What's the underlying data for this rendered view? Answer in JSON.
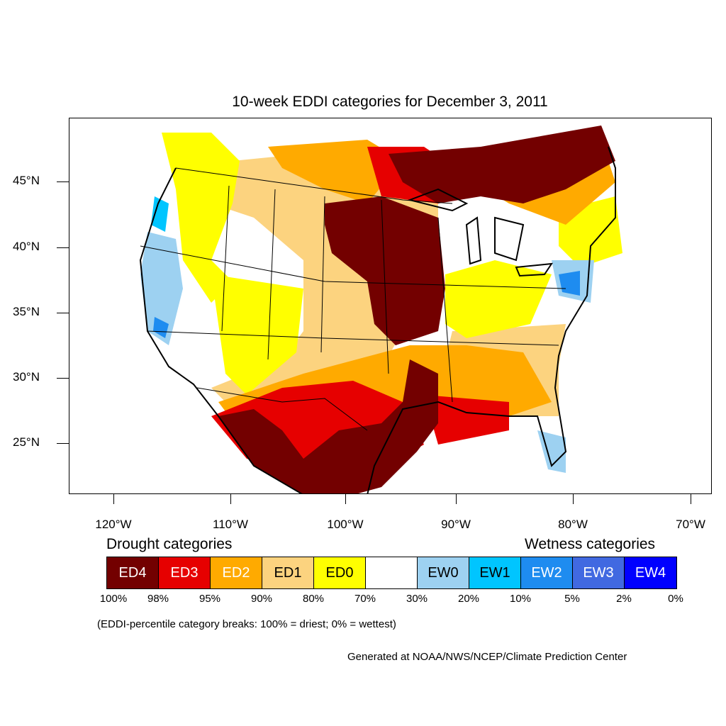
{
  "title": "10-week EDDI categories for December 3, 2011",
  "lat_labels": [
    "45°N",
    "40°N",
    "35°N",
    "30°N",
    "25°N"
  ],
  "lon_labels": [
    "120°W",
    "110°W",
    "100°W",
    "90°W",
    "80°W",
    "70°W"
  ],
  "legend": {
    "drought_heading": "Drought categories",
    "wetness_heading": "Wetness categories",
    "boxes": [
      {
        "label": "ED4",
        "color": "#730000",
        "text_color": "#ffffff"
      },
      {
        "label": "ED3",
        "color": "#e60000",
        "text_color": "#ffffff"
      },
      {
        "label": "ED2",
        "color": "#ffaa00",
        "text_color": "#ffffff"
      },
      {
        "label": "ED1",
        "color": "#fcd37f",
        "text_color": "#000000"
      },
      {
        "label": "ED0",
        "color": "#ffff00",
        "text_color": "#000000"
      },
      {
        "label": "",
        "color": "#ffffff",
        "text_color": "#000000"
      },
      {
        "label": "EW0",
        "color": "#9dd1f1",
        "text_color": "#000000"
      },
      {
        "label": "EW1",
        "color": "#00c5ff",
        "text_color": "#000000"
      },
      {
        "label": "EW2",
        "color": "#1e8cf0",
        "text_color": "#ffffff"
      },
      {
        "label": "EW3",
        "color": "#4169e1",
        "text_color": "#ffffff"
      },
      {
        "label": "EW4",
        "color": "#0000ff",
        "text_color": "#ffffff"
      }
    ],
    "breaks": [
      "100%",
      "98%",
      "95%",
      "90%",
      "80%",
      "70%",
      "30%",
      "20%",
      "10%",
      "5%",
      "2%",
      "0%"
    ]
  },
  "footnote": "(EDDI-percentile category breaks: 100% = driest; 0% = wettest)",
  "credit": "Generated at NOAA/NWS/NCEP/Climate Prediction Center"
}
